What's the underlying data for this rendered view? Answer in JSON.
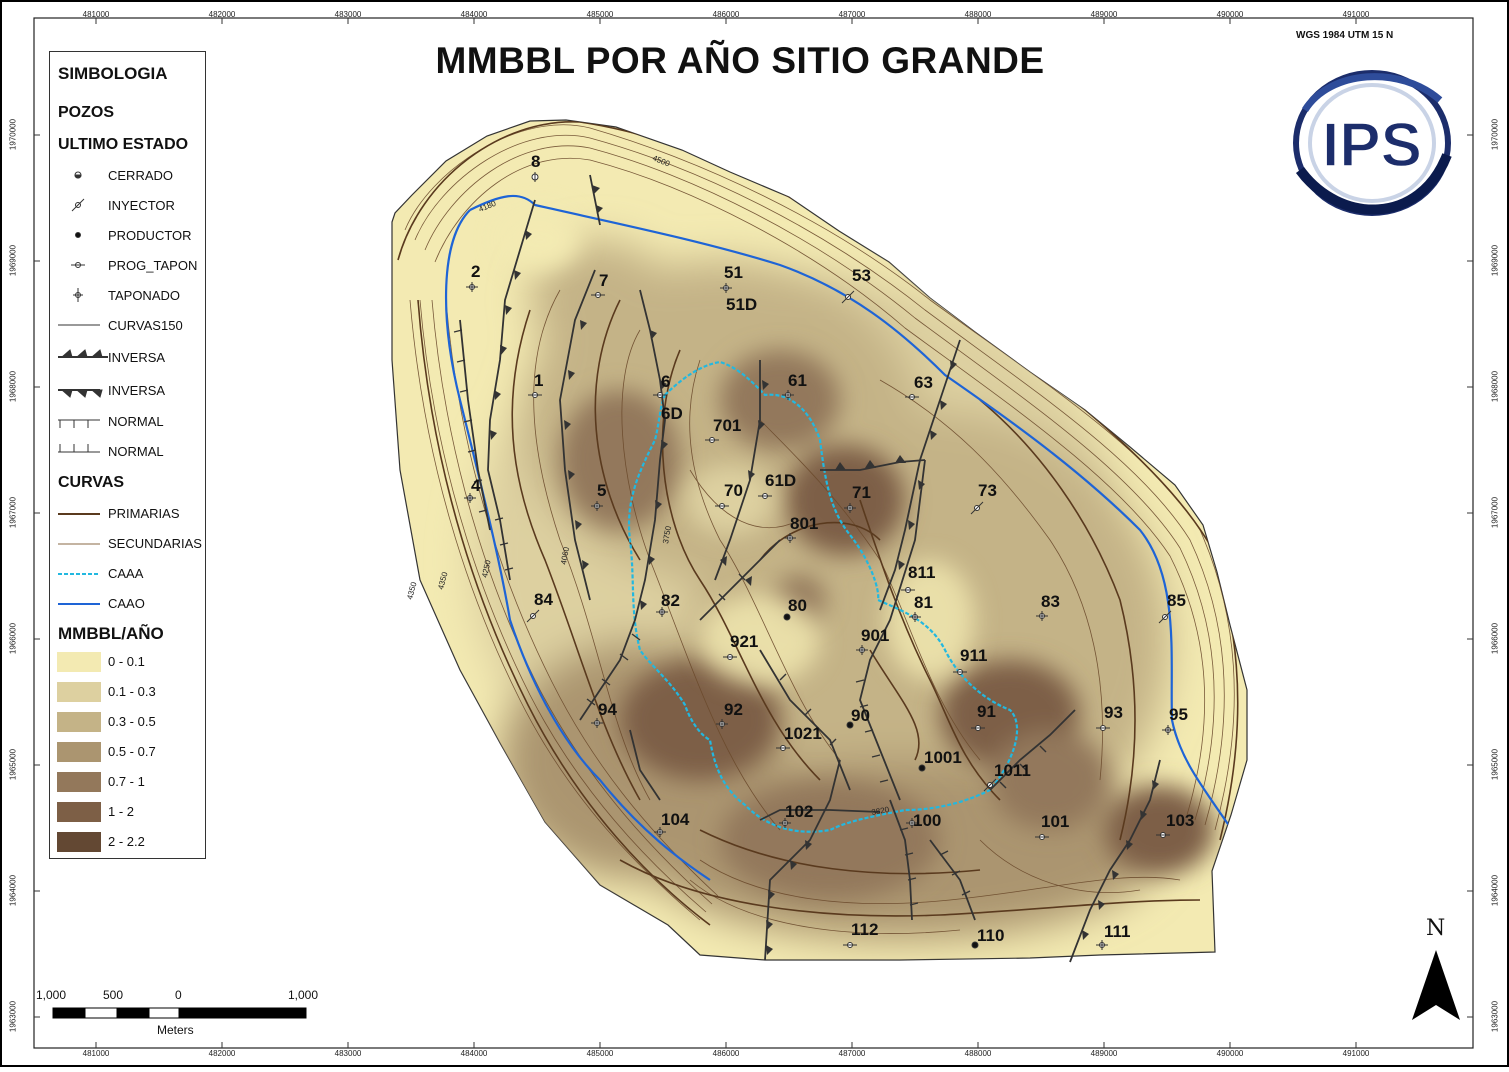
{
  "map": {
    "title": "MMBBL POR AÑO SITIO GRANDE",
    "projection": "WGS 1984 UTM 15 N",
    "logo_text": "IPS",
    "x_ticks": [
      "481000",
      "482000",
      "483000",
      "484000",
      "485000",
      "486000",
      "487000",
      "488000",
      "489000",
      "490000",
      "491000"
    ],
    "y_ticks": [
      "1970000",
      "1969000",
      "1968000",
      "1967000",
      "1966000",
      "1965000",
      "1964000",
      "1963000"
    ],
    "contour_labels": [
      "4500",
      "4180",
      "4350",
      "4350",
      "4250",
      "4060",
      "3750",
      "3820"
    ],
    "north_label": "N"
  },
  "legend": {
    "title": "SIMBOLOGIA",
    "pozos_heading": "POZOS",
    "estado_heading": "ULTIMO ESTADO",
    "well_states": [
      "CERRADO",
      "INYECTOR",
      "PRODUCTOR",
      "PROG_TAPON",
      "TAPONADO"
    ],
    "line_items": [
      "CURVAS150",
      "INVERSA",
      "INVERSA",
      "NORMAL",
      "NORMAL"
    ],
    "curvas_heading": "CURVAS",
    "curvas_items": [
      "PRIMARIAS",
      "SECUNDARIAS",
      "CAAA",
      "CAAO"
    ],
    "ramp_heading": "MMBBL/AÑO",
    "ramp": [
      {
        "label": "0 - 0.1",
        "color": "#f3eab2"
      },
      {
        "label": "0.1 - 0.3",
        "color": "#ddd0a0"
      },
      {
        "label": "0.3 - 0.5",
        "color": "#c4b387"
      },
      {
        "label": "0.5 - 0.7",
        "color": "#ab9570"
      },
      {
        "label": "0.7 - 1",
        "color": "#93785b"
      },
      {
        "label": "1 - 2",
        "color": "#7d5f46"
      },
      {
        "label": "2 - 2.2",
        "color": "#634833"
      }
    ]
  },
  "wells": [
    {
      "label": "8",
      "state": "CERRADO"
    },
    {
      "label": "2",
      "state": "TAPONADO"
    },
    {
      "label": "7",
      "state": "PROG_TAPON"
    },
    {
      "label": "51",
      "state": "TAPONADO"
    },
    {
      "label": "51D",
      "state": "TAPONADO"
    },
    {
      "label": "53",
      "state": "INYECTOR"
    },
    {
      "label": "1",
      "state": "PROG_TAPON"
    },
    {
      "label": "6",
      "state": "PROG_TAPON"
    },
    {
      "label": "6D",
      "state": "PROG_TAPON"
    },
    {
      "label": "61",
      "state": "TAPONADO"
    },
    {
      "label": "63",
      "state": "PROG_TAPON"
    },
    {
      "label": "701",
      "state": "PROG_TAPON"
    },
    {
      "label": "4",
      "state": "TAPONADO"
    },
    {
      "label": "5",
      "state": "TAPONADO"
    },
    {
      "label": "70",
      "state": "PROG_TAPON"
    },
    {
      "label": "61D",
      "state": "PROG_TAPON"
    },
    {
      "label": "71",
      "state": "TAPONADO"
    },
    {
      "label": "73",
      "state": "INYECTOR"
    },
    {
      "label": "801",
      "state": "TAPONADO"
    },
    {
      "label": "811",
      "state": "PROG_TAPON"
    },
    {
      "label": "84",
      "state": "INYECTOR"
    },
    {
      "label": "82",
      "state": "TAPONADO"
    },
    {
      "label": "80",
      "state": "PRODUCTOR"
    },
    {
      "label": "81",
      "state": "TAPONADO"
    },
    {
      "label": "83",
      "state": "TAPONADO"
    },
    {
      "label": "85",
      "state": "INYECTOR"
    },
    {
      "label": "921",
      "state": "PROG_TAPON"
    },
    {
      "label": "901",
      "state": "TAPONADO"
    },
    {
      "label": "911",
      "state": "PROG_TAPON"
    },
    {
      "label": "94",
      "state": "TAPONADO"
    },
    {
      "label": "92",
      "state": "TAPONADO"
    },
    {
      "label": "90",
      "state": "PRODUCTOR"
    },
    {
      "label": "1021",
      "state": "PROG_TAPON"
    },
    {
      "label": "91",
      "state": "PROG_TAPON"
    },
    {
      "label": "93",
      "state": "PROG_TAPON"
    },
    {
      "label": "95",
      "state": "TAPONADO"
    },
    {
      "label": "1001",
      "state": "PRODUCTOR"
    },
    {
      "label": "1011",
      "state": "INYECTOR"
    },
    {
      "label": "104",
      "state": "TAPONADO"
    },
    {
      "label": "102",
      "state": "TAPONADO"
    },
    {
      "label": "100",
      "state": "TAPONADO"
    },
    {
      "label": "101",
      "state": "PROG_TAPON"
    },
    {
      "label": "103",
      "state": "PROG_TAPON"
    },
    {
      "label": "112",
      "state": "PROG_TAPON"
    },
    {
      "label": "110",
      "state": "PRODUCTOR"
    },
    {
      "label": "111",
      "state": "TAPONADO"
    }
  ],
  "scale_bar": {
    "labels": [
      "1,000",
      "500",
      "0",
      "1,000"
    ],
    "unit": "Meters"
  }
}
